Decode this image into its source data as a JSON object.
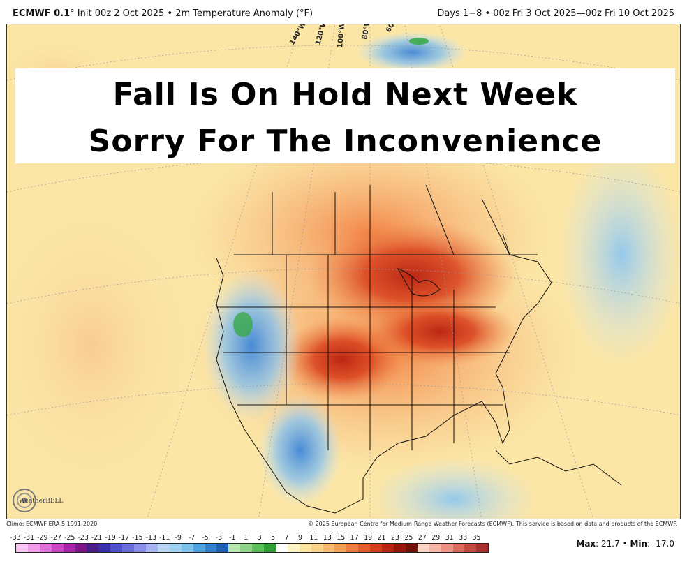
{
  "header": {
    "model": "ECMWF 0.1",
    "init_text": "° Init 00z 2 Oct 2025 • 2m Temperature Anomaly (°F)",
    "valid_text": "Days 1−8 • 00z Fri 3 Oct 2025—00z Fri 10 Oct 2025"
  },
  "banner": {
    "line1": "Fall Is On Hold Next Week",
    "line2": "Sorry For The Inconvenience"
  },
  "map": {
    "longitude_labels": [
      "140°W",
      "120°W",
      "100°W",
      "80°W",
      "60°W"
    ]
  },
  "logo": {
    "text": "WeatherBELL"
  },
  "footer": {
    "climo": "Climo: ECMWF ERA-5 1991-2020",
    "copyright": "© 2025 European Centre for Medium-Range Weather Forecasts (ECMWF). This service is based on data and products of the ECMWF."
  },
  "colorbar": {
    "ticks": [
      "-33",
      "-31",
      "-29",
      "-27",
      "-25",
      "-23",
      "-21",
      "-19",
      "-17",
      "-15",
      "-13",
      "-11",
      "-9",
      "-7",
      "-5",
      "-3",
      "-1",
      "1",
      "3",
      "5",
      "7",
      "9",
      "11",
      "13",
      "15",
      "17",
      "19",
      "21",
      "23",
      "25",
      "27",
      "29",
      "31",
      "33",
      "35"
    ],
    "colors": [
      "#f7c6f2",
      "#f09ce8",
      "#e46fd8",
      "#cf44c4",
      "#ac1fa8",
      "#7d1487",
      "#4c1c8e",
      "#3a2fb0",
      "#4d4fd0",
      "#6a6de0",
      "#8b8fe8",
      "#a8b4f0",
      "#b8d6f3",
      "#9fd0ef",
      "#7cc2ea",
      "#4ea4e0",
      "#2f7fd2",
      "#1f5fb8",
      "#b8e6b0",
      "#8fd48a",
      "#5ec05c",
      "#2f9e35",
      "#ffffff",
      "#fff6c8",
      "#fde6a4",
      "#fbd38a",
      "#f8bb6c",
      "#f59e4f",
      "#f07e3a",
      "#e85c2a",
      "#d83b1c",
      "#bd2313",
      "#9b150d",
      "#761109",
      "#fbd4c4",
      "#f7b5a7",
      "#ef8f85",
      "#e06a62",
      "#c64843",
      "#a8302e"
    ],
    "max_label": "Max",
    "max_value": "21.7",
    "sep": "•",
    "min_label": "Min",
    "min_value": "-17.0"
  }
}
